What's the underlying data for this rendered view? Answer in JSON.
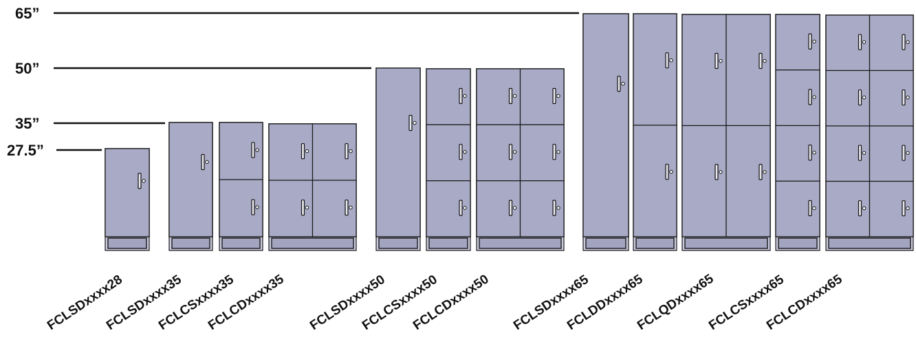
{
  "height_markers": [
    "65”",
    "50”",
    "35”",
    "27.5”"
  ],
  "cabinets": [
    {
      "model": "FCLSDxxxx28",
      "columns": 1,
      "rows": 1,
      "height_in": 27.5
    },
    {
      "model": "FCLSDxxxx35",
      "columns": 1,
      "rows": 1,
      "height_in": 35
    },
    {
      "model": "FCLCSxxxx35",
      "columns": 1,
      "rows": 2,
      "height_in": 35
    },
    {
      "model": "FCLCDxxxx35",
      "columns": 2,
      "rows": 2,
      "height_in": 35
    },
    {
      "model": "FCLSDxxxx50",
      "columns": 1,
      "rows": 1,
      "height_in": 50
    },
    {
      "model": "FCLCSxxxx50",
      "columns": 1,
      "rows": 3,
      "height_in": 50
    },
    {
      "model": "FCLCDxxxx50",
      "columns": 2,
      "rows": 3,
      "height_in": 50
    },
    {
      "model": "FCLSDxxxx65",
      "columns": 1,
      "rows": 1,
      "height_in": 65
    },
    {
      "model": "FCLDDxxxx65",
      "columns": 1,
      "rows": 2,
      "height_in": 65
    },
    {
      "model": "FCLQDxxxx65",
      "columns": 2,
      "rows": 2,
      "height_in": 65
    },
    {
      "model": "FCLCSxxxx65",
      "columns": 1,
      "rows": 4,
      "height_in": 65
    },
    {
      "model": "FCLCDxxxx65",
      "columns": 2,
      "rows": 4,
      "height_in": 65
    }
  ],
  "colors": {
    "cabinet_fill": "#a8aac6",
    "outline": "#1a1a1a",
    "label": "#111111"
  }
}
